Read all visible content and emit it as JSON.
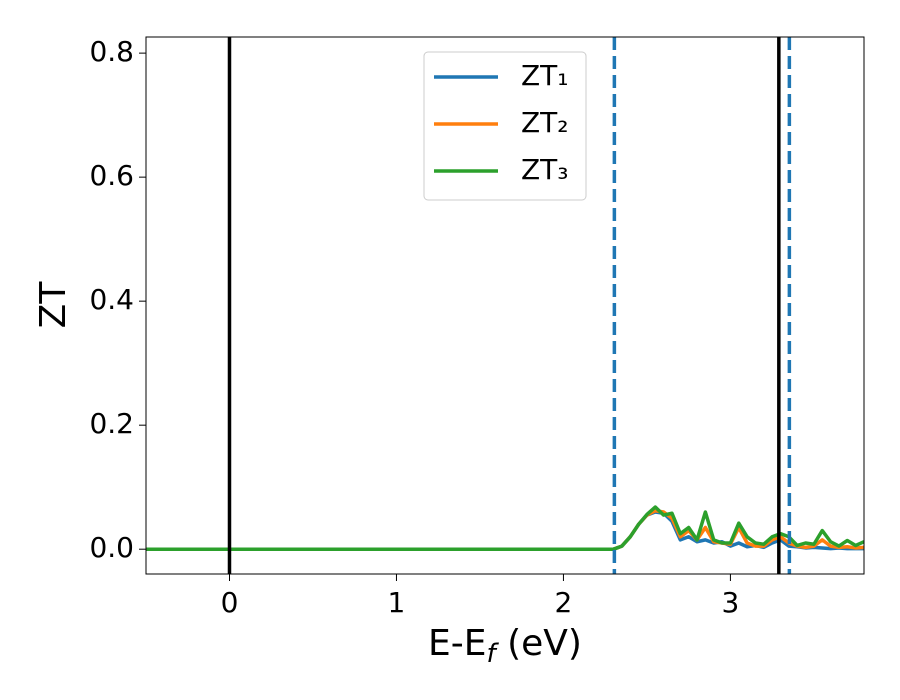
{
  "chart_data": {
    "type": "line",
    "x_label": [
      "E-E",
      "f",
      " (eV)"
    ],
    "y_label": "ZT",
    "x": [
      -0.5,
      2.3,
      2.35,
      2.4,
      2.45,
      2.5,
      2.55,
      2.6,
      2.65,
      2.7,
      2.75,
      2.8,
      2.85,
      2.9,
      2.95,
      3.0,
      3.05,
      3.1,
      3.15,
      3.2,
      3.25,
      3.3,
      3.35,
      3.4,
      3.45,
      3.5,
      3.55,
      3.6,
      3.65,
      3.7,
      3.75,
      3.8
    ],
    "series": [
      {
        "name": "ZT₁",
        "color": "#1f77b4",
        "values": [
          0,
          0,
          0.005,
          0.02,
          0.04,
          0.055,
          0.06,
          0.058,
          0.045,
          0.015,
          0.02,
          0.012,
          0.015,
          0.01,
          0.012,
          0.005,
          0.01,
          0.004,
          0.006,
          0.003,
          0.01,
          0.015,
          0.005,
          0.004,
          0.002,
          0.003,
          0.002,
          0.001,
          0.002,
          0.001,
          0.001,
          0.001
        ]
      },
      {
        "name": "ZT₂",
        "color": "#ff7f0e",
        "values": [
          0,
          0,
          0.005,
          0.02,
          0.04,
          0.055,
          0.062,
          0.06,
          0.05,
          0.02,
          0.03,
          0.015,
          0.035,
          0.012,
          0.01,
          0.008,
          0.035,
          0.01,
          0.005,
          0.005,
          0.015,
          0.02,
          0.01,
          0.005,
          0.003,
          0.005,
          0.015,
          0.005,
          0.003,
          0.004,
          0.002,
          0.003
        ]
      },
      {
        "name": "ZT₃",
        "color": "#2ca02c",
        "values": [
          0,
          0,
          0.005,
          0.02,
          0.04,
          0.056,
          0.068,
          0.055,
          0.058,
          0.025,
          0.035,
          0.015,
          0.06,
          0.015,
          0.01,
          0.01,
          0.042,
          0.02,
          0.01,
          0.008,
          0.02,
          0.025,
          0.02,
          0.006,
          0.01,
          0.008,
          0.03,
          0.012,
          0.005,
          0.014,
          0.006,
          0.012
        ]
      }
    ],
    "vlines": [
      {
        "x": 0,
        "color": "#000000",
        "style": "solid"
      },
      {
        "x": 3.29,
        "color": "#000000",
        "style": "solid"
      },
      {
        "x": 2.305,
        "color": "#1f77b4",
        "style": "dashed"
      },
      {
        "x": 3.353,
        "color": "#1f77b4",
        "style": "dashed"
      }
    ],
    "xlim": [
      -0.5,
      3.8
    ],
    "ylim": [
      -0.04,
      0.826
    ],
    "xticks": [
      0,
      1,
      2,
      3
    ],
    "yticks": [
      {
        "value": 0,
        "label": "0.0"
      },
      0.2,
      0.4,
      0.6,
      0.8
    ],
    "grid": false,
    "legend": "upper center"
  }
}
